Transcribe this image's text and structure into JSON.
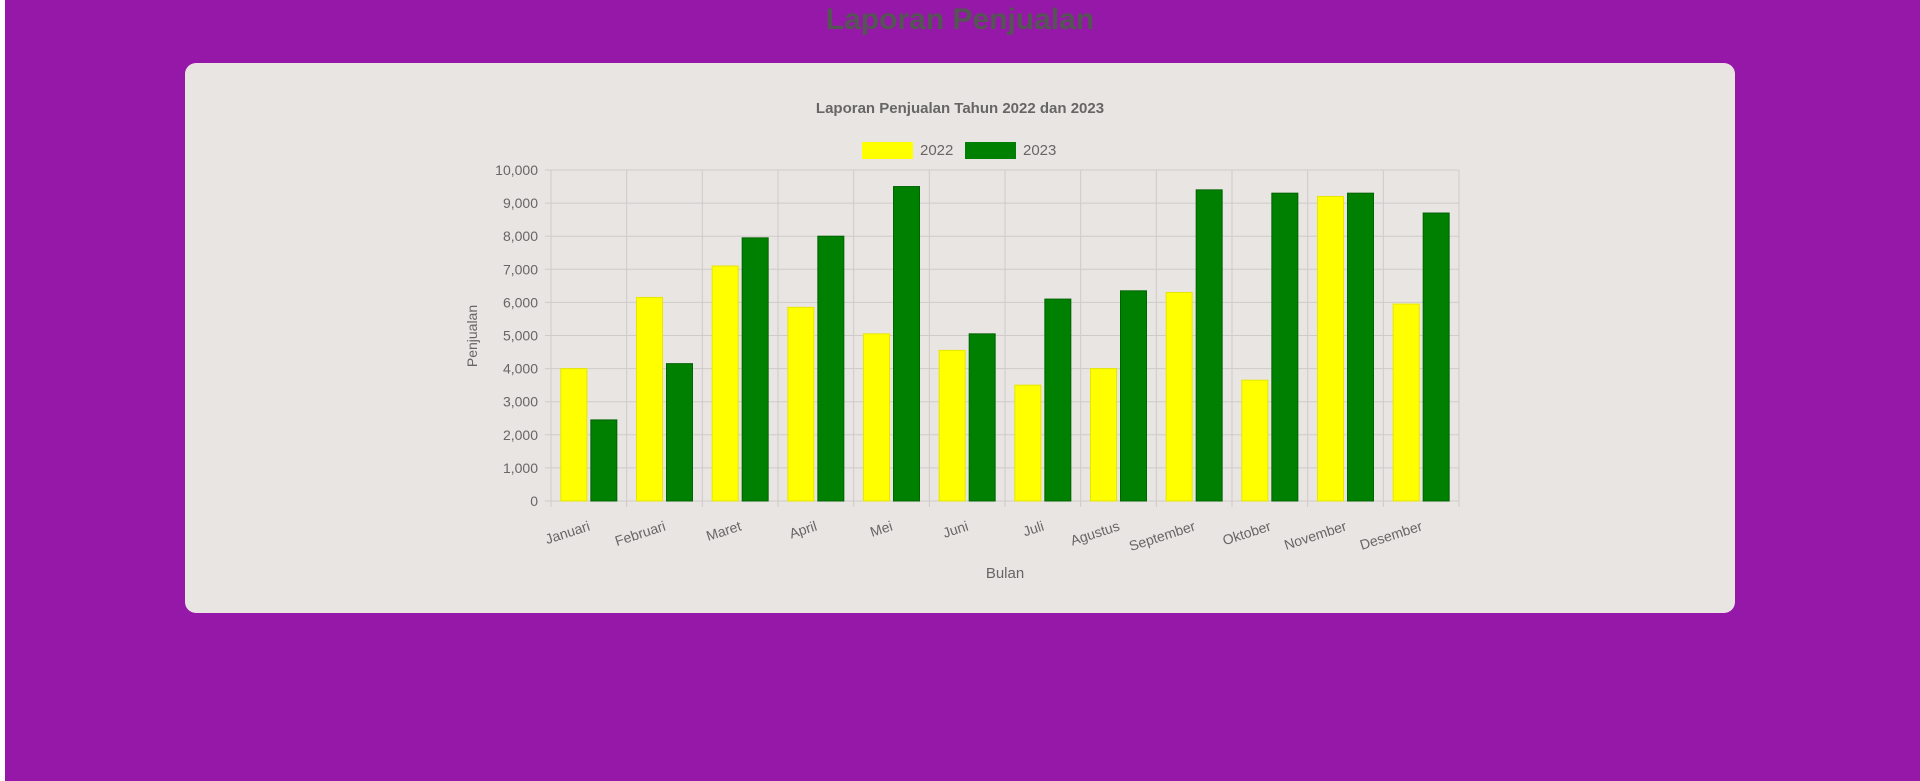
{
  "page": {
    "title": "Laporan Penjualan"
  },
  "colors": {
    "page_background": "#9618a8",
    "card_background": "#e9e5e3",
    "series_2022": "#ffff00",
    "series_2023": "#008000"
  },
  "chart_data": {
    "type": "bar",
    "title": "Laporan Penjualan Tahun 2022 dan 2023",
    "xlabel": "Bulan",
    "ylabel": "Penjualan",
    "ylim": [
      0,
      10000
    ],
    "y_ticks": [
      "0",
      "1,000",
      "2,000",
      "3,000",
      "4,000",
      "5,000",
      "6,000",
      "7,000",
      "8,000",
      "9,000",
      "10,000"
    ],
    "grid": true,
    "legend_position": "top",
    "categories": [
      "Januari",
      "Februari",
      "Maret",
      "April",
      "Mei",
      "Juni",
      "Juli",
      "Agustus",
      "September",
      "Oktober",
      "November",
      "Desember"
    ],
    "series": [
      {
        "name": "2022",
        "color": "#ffff00",
        "values": [
          4000,
          6150,
          7100,
          5850,
          5050,
          4550,
          3500,
          4000,
          6300,
          3650,
          9200,
          5950
        ]
      },
      {
        "name": "2023",
        "color": "#008000",
        "values": [
          2450,
          4150,
          7950,
          8000,
          9500,
          5050,
          6100,
          6350,
          9400,
          9300,
          9300,
          8700
        ]
      }
    ]
  }
}
